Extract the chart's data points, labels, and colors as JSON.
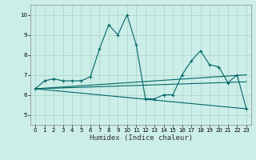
{
  "title": "",
  "xlabel": "Humidex (Indice chaleur)",
  "bg_color": "#cceee8",
  "grid_color": "#b0d8cc",
  "line_color": "#006666",
  "xlim": [
    -0.5,
    23.5
  ],
  "ylim": [
    4.5,
    10.5
  ],
  "xticks": [
    0,
    1,
    2,
    3,
    4,
    5,
    6,
    7,
    8,
    9,
    10,
    11,
    12,
    13,
    14,
    15,
    16,
    17,
    18,
    19,
    20,
    21,
    22,
    23
  ],
  "yticks": [
    5,
    6,
    7,
    8,
    9,
    10
  ],
  "series1_x": [
    0,
    1,
    2,
    3,
    4,
    5,
    6,
    7,
    8,
    9,
    10,
    11,
    12,
    13,
    14,
    15,
    16,
    17,
    18,
    19,
    20,
    21,
    22,
    23
  ],
  "series1_y": [
    6.3,
    6.7,
    6.8,
    6.7,
    6.7,
    6.7,
    6.9,
    8.3,
    9.5,
    9.0,
    10.0,
    8.5,
    5.8,
    5.8,
    6.0,
    6.0,
    7.0,
    7.7,
    8.2,
    7.5,
    7.4,
    6.6,
    7.0,
    5.3
  ],
  "series2_x": [
    0,
    23
  ],
  "series2_y": [
    6.3,
    5.3
  ],
  "series3_x": [
    0,
    23
  ],
  "series3_y": [
    6.3,
    7.0
  ],
  "series4_x": [
    0,
    23
  ],
  "series4_y": [
    6.3,
    6.65
  ]
}
